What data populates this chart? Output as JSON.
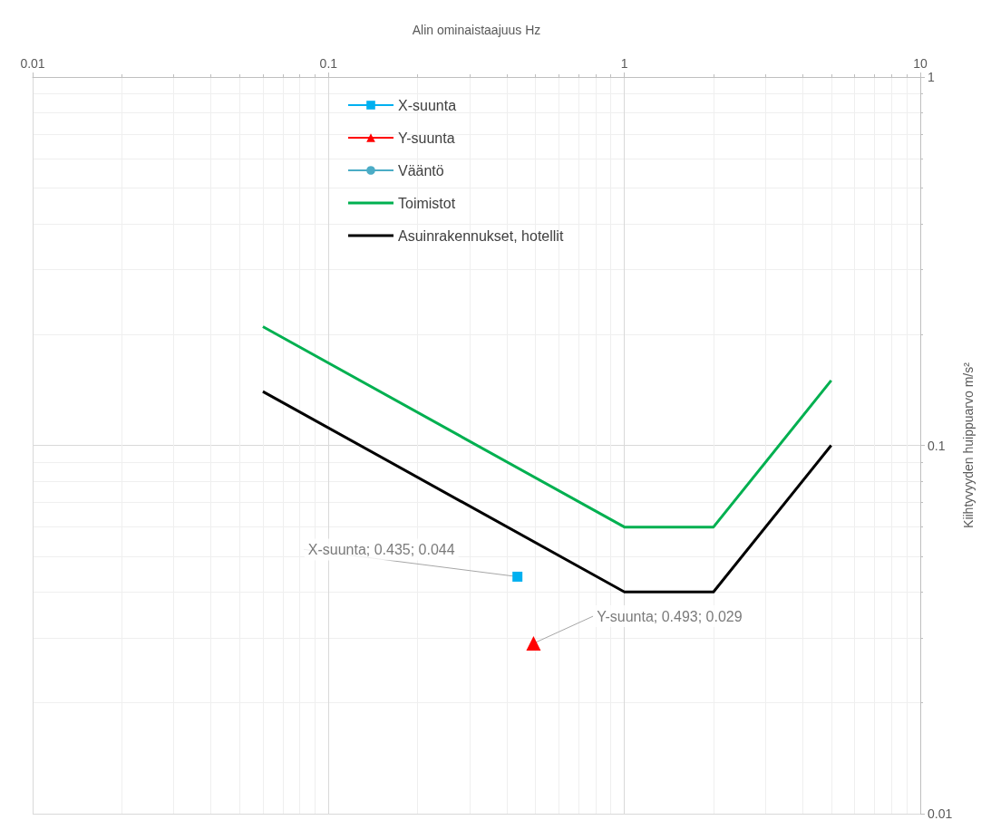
{
  "chart_data": {
    "type": "line",
    "xlabel": "Alin ominaistaajuus Hz",
    "ylabel": "Kiihtyvyyden huippuarvo m/s²",
    "log": "xy",
    "grid": true,
    "legend": "top left",
    "xlim": [
      0.01,
      10
    ],
    "xticks": [
      0.01,
      0.1,
      1,
      10
    ],
    "ylim": [
      0.01,
      1
    ],
    "yticks": [
      0.01,
      0.1,
      1
    ],
    "series": [
      {
        "name": "X-suunta",
        "color": "#00b0f0",
        "marker": "square",
        "x": [
          0.435
        ],
        "values": [
          0.044
        ]
      },
      {
        "name": "Y-suunta",
        "color": "#ff0000",
        "marker": "triangle",
        "x": [
          0.493
        ],
        "values": [
          0.029
        ]
      },
      {
        "name": "Vääntö",
        "color": "#4bacc6",
        "marker": "circle"
      },
      {
        "name": "Toimistot",
        "color": "#00b050",
        "marker": "none",
        "x": [
          0.06,
          1,
          2,
          5
        ],
        "values": [
          0.21,
          0.06,
          0.06,
          0.15
        ]
      },
      {
        "name": "Asuinrakennukset, hotellit",
        "color": "#000000",
        "marker": "none",
        "x": [
          0.06,
          1,
          2,
          5
        ],
        "values": [
          0.14,
          0.04,
          0.04,
          0.1
        ]
      }
    ],
    "annotations": [
      {
        "text": "X-suunta; 0.435; 0.044",
        "x": 0.435,
        "y": 0.044
      },
      {
        "text": "Y-suunta; 0.493; 0.029",
        "x": 0.493,
        "y": 0.029
      }
    ]
  }
}
